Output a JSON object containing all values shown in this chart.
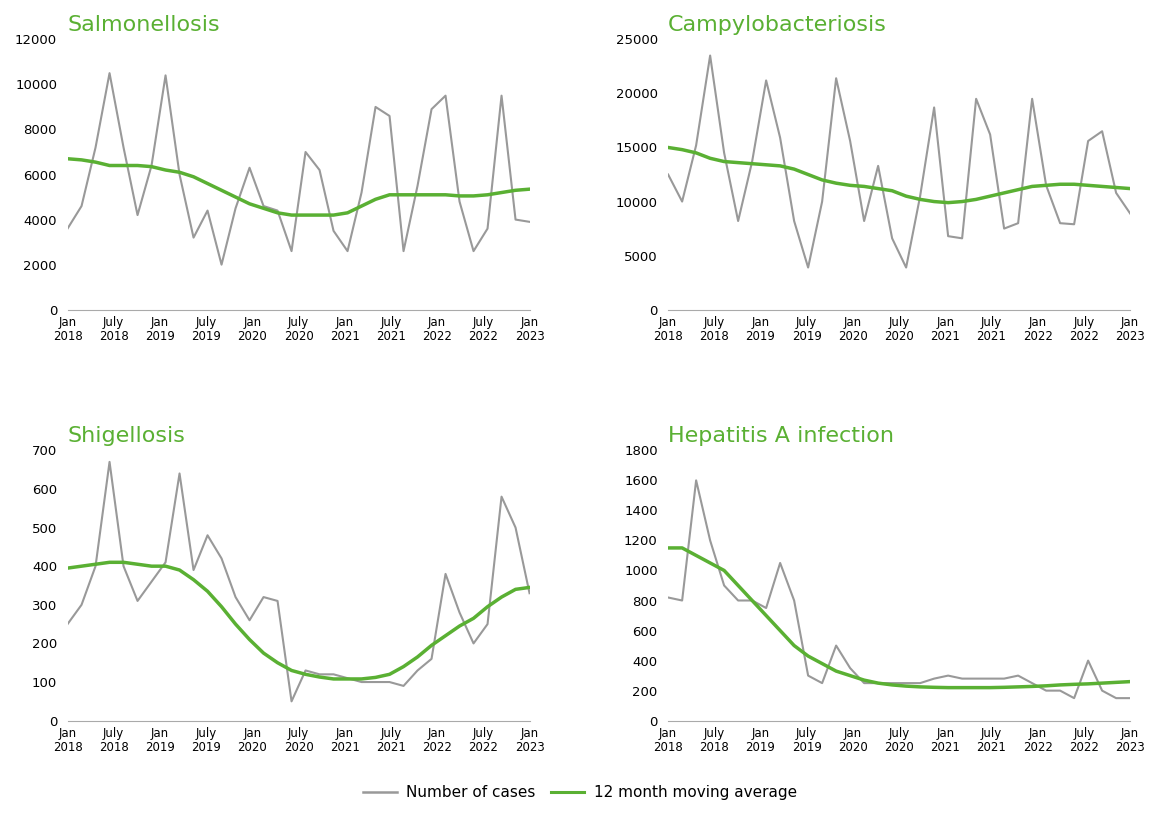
{
  "titles": [
    "Salmonellosis",
    "Campylobacteriosis",
    "Shigellosis",
    "Hepatitis A infection"
  ],
  "title_color": "#5ab033",
  "gray_color": "#999999",
  "green_color": "#5ab033",
  "background_color": "#ffffff",
  "legend_labels": [
    "Number of cases",
    "12 month moving average"
  ],
  "salmonellosis_raw": [
    3600,
    4600,
    7200,
    10500,
    7200,
    4200,
    6400,
    10400,
    6000,
    3200,
    4400,
    2000,
    4500,
    6300,
    4600,
    4400,
    2600,
    7000,
    6200,
    3500,
    2600,
    5200,
    9000,
    8600,
    2600,
    5500,
    8900,
    9500,
    4800,
    2600,
    3600,
    9500,
    4000,
    3900
  ],
  "salmonellosis_avg": [
    6700,
    6650,
    6550,
    6400,
    6400,
    6400,
    6350,
    6200,
    6100,
    5900,
    5600,
    5300,
    5000,
    4700,
    4500,
    4300,
    4200,
    4200,
    4200,
    4200,
    4300,
    4600,
    4900,
    5100,
    5100,
    5100,
    5100,
    5100,
    5050,
    5050,
    5100,
    5200,
    5300,
    5350
  ],
  "campylobacter_raw": [
    12500,
    10000,
    15200,
    23500,
    14500,
    8200,
    13700,
    21200,
    15900,
    8200,
    3900,
    10000,
    21400,
    15600,
    8200,
    13300,
    6600,
    3900,
    10500,
    18700,
    6800,
    6600,
    19500,
    16200,
    7500,
    8000,
    19500,
    11500,
    8000,
    7900,
    15600,
    16500,
    10800,
    8900
  ],
  "campylobacter_avg": [
    15000,
    14800,
    14500,
    14000,
    13700,
    13600,
    13500,
    13400,
    13300,
    13000,
    12500,
    12000,
    11700,
    11500,
    11400,
    11200,
    11000,
    10500,
    10200,
    10000,
    9900,
    10000,
    10200,
    10500,
    10800,
    11100,
    11400,
    11500,
    11600,
    11600,
    11500,
    11400,
    11300,
    11200
  ],
  "shigellosis_raw": [
    250,
    300,
    400,
    670,
    400,
    310,
    360,
    410,
    640,
    390,
    480,
    420,
    320,
    260,
    320,
    310,
    50,
    130,
    120,
    120,
    110,
    100,
    100,
    100,
    90,
    130,
    160,
    380,
    280,
    200,
    250,
    580,
    500,
    330
  ],
  "shigellosis_avg": [
    395,
    400,
    405,
    410,
    410,
    405,
    400,
    400,
    390,
    365,
    335,
    295,
    250,
    210,
    175,
    150,
    130,
    120,
    113,
    108,
    108,
    108,
    112,
    120,
    140,
    165,
    195,
    220,
    245,
    265,
    295,
    320,
    340,
    345
  ],
  "hepatitisa_raw": [
    820,
    800,
    1600,
    1200,
    900,
    800,
    800,
    750,
    1050,
    800,
    300,
    250,
    500,
    350,
    250,
    250,
    250,
    250,
    250,
    280,
    300,
    280,
    280,
    280,
    280,
    300,
    250,
    200,
    200,
    150,
    400,
    200,
    150,
    150
  ],
  "hepatitisa_avg": [
    1150,
    1150,
    1100,
    1050,
    1000,
    900,
    800,
    700,
    600,
    500,
    430,
    380,
    330,
    300,
    270,
    250,
    238,
    230,
    225,
    222,
    220,
    220,
    220,
    220,
    222,
    225,
    228,
    232,
    238,
    242,
    245,
    250,
    255,
    260
  ],
  "salmonellosis_ylim": [
    0,
    12000
  ],
  "salmonellosis_yticks": [
    0,
    2000,
    4000,
    6000,
    8000,
    10000,
    12000
  ],
  "campylobacter_ylim": [
    0,
    25000
  ],
  "campylobacter_yticks": [
    0,
    5000,
    10000,
    15000,
    20000,
    25000
  ],
  "shigellosis_ylim": [
    0,
    700
  ],
  "shigellosis_yticks": [
    0,
    100,
    200,
    300,
    400,
    500,
    600,
    700
  ],
  "hepatitisa_ylim": [
    0,
    1800
  ],
  "hepatitisa_yticks": [
    0,
    200,
    400,
    600,
    800,
    1000,
    1200,
    1400,
    1600,
    1800
  ],
  "tick_months": [
    "Jan",
    "July",
    "Jan",
    "July",
    "Jan",
    "July",
    "Jan",
    "July",
    "Jan",
    "July",
    "Jan"
  ],
  "tick_years": [
    "2018",
    "2018",
    "2019",
    "2019",
    "2020",
    "2020",
    "2021",
    "2021",
    "2022",
    "2022",
    "2023"
  ]
}
